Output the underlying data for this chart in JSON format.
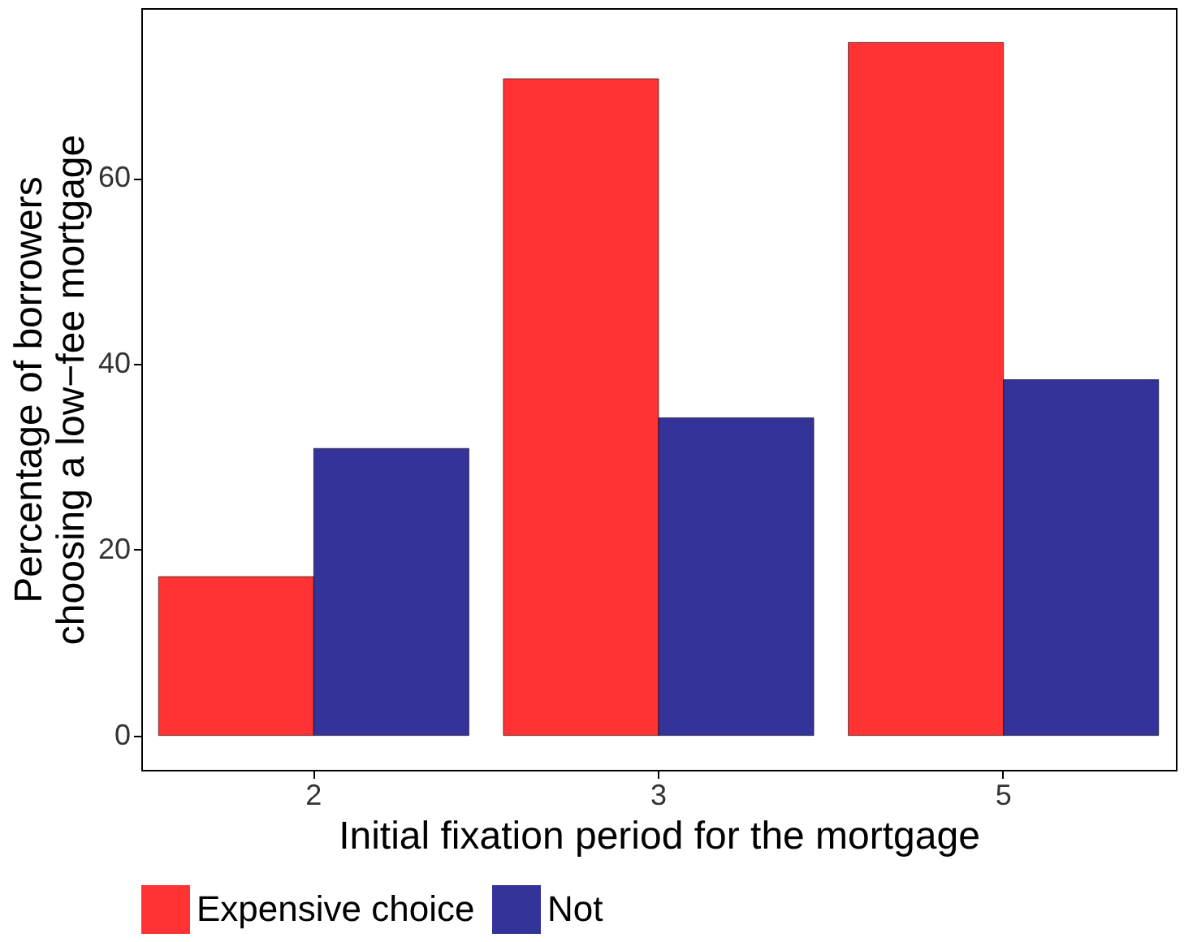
{
  "chart_data": {
    "type": "bar",
    "xlabel": "Initial fixation period for the mortgage",
    "ylabel": "Percentage of borrowers\nchoosing a low−fee mortgage",
    "categories": [
      "2",
      "3",
      "5"
    ],
    "series": [
      {
        "name": "Expensive choice",
        "color": "#ff3333",
        "values": [
          17.1,
          70.7,
          74.6
        ]
      },
      {
        "name": "Not",
        "color": "#333399",
        "values": [
          30.9,
          34.2,
          38.3
        ]
      }
    ],
    "ylim": [
      -3.7,
      78.3
    ],
    "yticks": [
      0,
      20,
      40,
      60
    ],
    "grid": false,
    "legend": "bottom"
  }
}
